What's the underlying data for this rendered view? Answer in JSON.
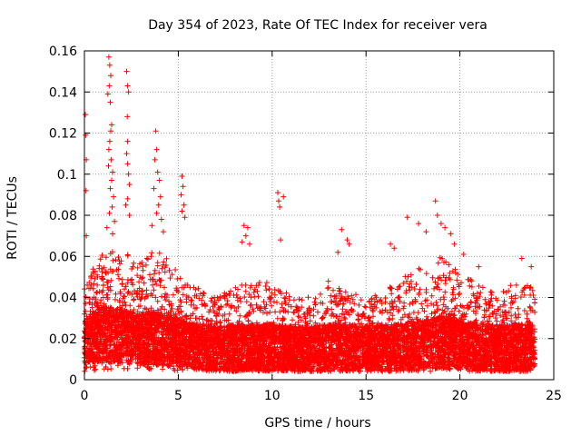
{
  "chart_data": {
    "type": "scatter",
    "title": "Day 354 of 2023, Rate Of TEC Index for receiver vera",
    "xlabel": "GPS time / hours",
    "ylabel": "ROTI / TECUs",
    "xlim": [
      0,
      25
    ],
    "ylim": [
      0,
      0.16
    ],
    "xticks": [
      0,
      5,
      10,
      15,
      20,
      25
    ],
    "xtick_labels": [
      "0",
      "5",
      "10",
      "15",
      "20",
      "25"
    ],
    "yticks": [
      0,
      0.02,
      0.04,
      0.06,
      0.08,
      0.1,
      0.12,
      0.14,
      0.16
    ],
    "ytick_labels": [
      "0",
      "0.02",
      "0.04",
      "0.06",
      "0.08",
      "0.1",
      "0.12",
      "0.14",
      "0.16"
    ],
    "grid": true,
    "marker": "+",
    "color": "#ff0000",
    "series": [
      {
        "name": "ROTI",
        "points": [
          [
            0.05,
            0.129
          ],
          [
            0.07,
            0.119
          ],
          [
            0.1,
            0.107
          ],
          [
            0.08,
            0.092
          ],
          [
            0.1,
            0.07
          ],
          [
            0.15,
            0.046
          ],
          [
            1.3,
            0.157
          ],
          [
            1.35,
            0.153
          ],
          [
            1.4,
            0.148
          ],
          [
            1.32,
            0.143
          ],
          [
            1.25,
            0.139
          ],
          [
            1.38,
            0.135
          ],
          [
            1.45,
            0.124
          ],
          [
            1.4,
            0.121
          ],
          [
            1.35,
            0.116
          ],
          [
            1.3,
            0.112
          ],
          [
            1.42,
            0.107
          ],
          [
            1.28,
            0.104
          ],
          [
            1.5,
            0.101
          ],
          [
            1.45,
            0.097
          ],
          [
            1.38,
            0.093
          ],
          [
            1.55,
            0.089
          ],
          [
            1.48,
            0.084
          ],
          [
            1.33,
            0.081
          ],
          [
            1.6,
            0.077
          ],
          [
            1.2,
            0.074
          ],
          [
            1.5,
            0.071
          ],
          [
            2.25,
            0.15
          ],
          [
            2.3,
            0.143
          ],
          [
            2.35,
            0.14
          ],
          [
            2.28,
            0.128
          ],
          [
            2.3,
            0.116
          ],
          [
            2.25,
            0.11
          ],
          [
            2.3,
            0.105
          ],
          [
            2.35,
            0.1
          ],
          [
            2.4,
            0.095
          ],
          [
            2.3,
            0.088
          ],
          [
            2.2,
            0.085
          ],
          [
            2.4,
            0.08
          ],
          [
            3.8,
            0.121
          ],
          [
            3.85,
            0.112
          ],
          [
            3.75,
            0.107
          ],
          [
            3.9,
            0.101
          ],
          [
            4.0,
            0.097
          ],
          [
            3.7,
            0.093
          ],
          [
            4.05,
            0.089
          ],
          [
            3.95,
            0.085
          ],
          [
            3.85,
            0.081
          ],
          [
            4.1,
            0.078
          ],
          [
            3.6,
            0.075
          ],
          [
            4.2,
            0.072
          ],
          [
            5.2,
            0.099
          ],
          [
            5.25,
            0.094
          ],
          [
            5.15,
            0.09
          ],
          [
            5.3,
            0.085
          ],
          [
            5.2,
            0.082
          ],
          [
            5.35,
            0.079
          ],
          [
            8.5,
            0.075
          ],
          [
            8.7,
            0.074
          ],
          [
            8.6,
            0.07
          ],
          [
            8.4,
            0.067
          ],
          [
            8.8,
            0.066
          ],
          [
            10.3,
            0.091
          ],
          [
            10.35,
            0.087
          ],
          [
            10.6,
            0.089
          ],
          [
            10.4,
            0.084
          ],
          [
            10.45,
            0.068
          ],
          [
            13.7,
            0.073
          ],
          [
            14.0,
            0.068
          ],
          [
            14.1,
            0.066
          ],
          [
            13.5,
            0.062
          ],
          [
            16.3,
            0.066
          ],
          [
            16.5,
            0.064
          ],
          [
            17.2,
            0.079
          ],
          [
            17.8,
            0.076
          ],
          [
            18.2,
            0.072
          ],
          [
            18.7,
            0.087
          ],
          [
            18.8,
            0.08
          ],
          [
            19.0,
            0.076
          ],
          [
            19.2,
            0.074
          ],
          [
            19.5,
            0.071
          ],
          [
            19.7,
            0.066
          ],
          [
            20.2,
            0.061
          ],
          [
            21.0,
            0.055
          ],
          [
            23.3,
            0.059
          ],
          [
            23.8,
            0.055
          ]
        ],
        "baseline_profile": [
          [
            0,
            0.014,
            0.022,
            0.045
          ],
          [
            1,
            0.015,
            0.028,
            0.065
          ],
          [
            2,
            0.014,
            0.026,
            0.062
          ],
          [
            3,
            0.013,
            0.024,
            0.058
          ],
          [
            4,
            0.013,
            0.026,
            0.065
          ],
          [
            5,
            0.012,
            0.022,
            0.052
          ],
          [
            6,
            0.011,
            0.019,
            0.045
          ],
          [
            7,
            0.01,
            0.018,
            0.04
          ],
          [
            8,
            0.01,
            0.019,
            0.045
          ],
          [
            9,
            0.01,
            0.019,
            0.048
          ],
          [
            10,
            0.01,
            0.019,
            0.047
          ],
          [
            11,
            0.01,
            0.018,
            0.044
          ],
          [
            12,
            0.01,
            0.018,
            0.04
          ],
          [
            13,
            0.01,
            0.019,
            0.048
          ],
          [
            14,
            0.01,
            0.019,
            0.045
          ],
          [
            15,
            0.01,
            0.018,
            0.038
          ],
          [
            16,
            0.01,
            0.019,
            0.045
          ],
          [
            17,
            0.01,
            0.019,
            0.05
          ],
          [
            18,
            0.011,
            0.021,
            0.055
          ],
          [
            19,
            0.011,
            0.023,
            0.06
          ],
          [
            20,
            0.011,
            0.021,
            0.052
          ],
          [
            21,
            0.01,
            0.019,
            0.047
          ],
          [
            22,
            0.01,
            0.018,
            0.042
          ],
          [
            23,
            0.01,
            0.019,
            0.048
          ],
          [
            24,
            0.01,
            0.019,
            0.045
          ]
        ],
        "x_end": 24.0
      }
    ]
  }
}
